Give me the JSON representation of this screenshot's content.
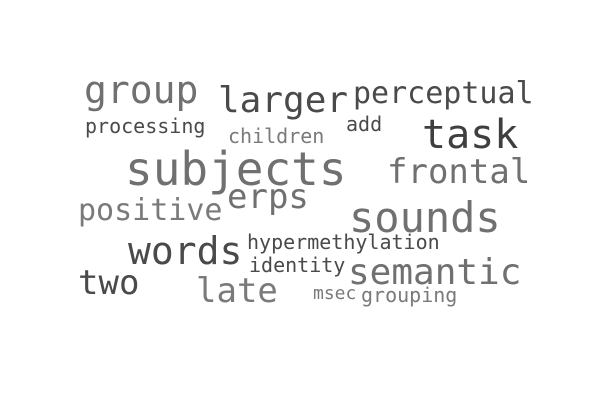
{
  "words": {
    "group": "group",
    "larger": "larger",
    "perceptual": "perceptual",
    "processing": "processing",
    "add": "add",
    "children": "children",
    "task": "task",
    "subjects": "subjects",
    "frontal": "frontal",
    "erps": "erps",
    "positive": "positive",
    "sounds": "sounds",
    "words": "words",
    "hypermethylation": "hypermethylation",
    "identity": "identity",
    "semantic": "semantic",
    "two": "two",
    "late": "late",
    "msec": "msec",
    "grouping": "grouping"
  },
  "colors": {
    "background": "#ffffff",
    "text_mid": "#707070",
    "text_dark": "#4a4a4a"
  }
}
